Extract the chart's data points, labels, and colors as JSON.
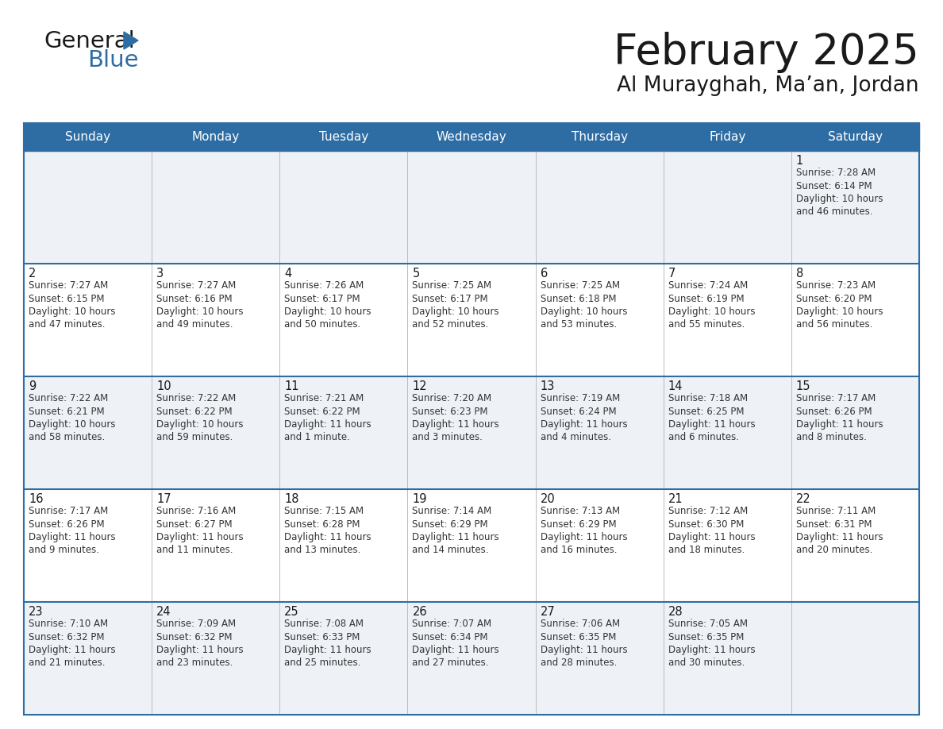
{
  "title": "February 2025",
  "subtitle": "Al Murayghah, Ma’an, Jordan",
  "header_color": "#2e6da4",
  "header_text_color": "#ffffff",
  "cell_bg_even": "#eef2f7",
  "cell_bg_odd": "#ffffff",
  "text_color": "#333333",
  "day_number_color": "#1a1a1a",
  "border_color": "#2e6da4",
  "divider_color": "#2e6da4",
  "days_of_week": [
    "Sunday",
    "Monday",
    "Tuesday",
    "Wednesday",
    "Thursday",
    "Friday",
    "Saturday"
  ],
  "weeks": [
    [
      {
        "day": "",
        "info": ""
      },
      {
        "day": "",
        "info": ""
      },
      {
        "day": "",
        "info": ""
      },
      {
        "day": "",
        "info": ""
      },
      {
        "day": "",
        "info": ""
      },
      {
        "day": "",
        "info": ""
      },
      {
        "day": "1",
        "info": "Sunrise: 7:28 AM\nSunset: 6:14 PM\nDaylight: 10 hours\nand 46 minutes."
      }
    ],
    [
      {
        "day": "2",
        "info": "Sunrise: 7:27 AM\nSunset: 6:15 PM\nDaylight: 10 hours\nand 47 minutes."
      },
      {
        "day": "3",
        "info": "Sunrise: 7:27 AM\nSunset: 6:16 PM\nDaylight: 10 hours\nand 49 minutes."
      },
      {
        "day": "4",
        "info": "Sunrise: 7:26 AM\nSunset: 6:17 PM\nDaylight: 10 hours\nand 50 minutes."
      },
      {
        "day": "5",
        "info": "Sunrise: 7:25 AM\nSunset: 6:17 PM\nDaylight: 10 hours\nand 52 minutes."
      },
      {
        "day": "6",
        "info": "Sunrise: 7:25 AM\nSunset: 6:18 PM\nDaylight: 10 hours\nand 53 minutes."
      },
      {
        "day": "7",
        "info": "Sunrise: 7:24 AM\nSunset: 6:19 PM\nDaylight: 10 hours\nand 55 minutes."
      },
      {
        "day": "8",
        "info": "Sunrise: 7:23 AM\nSunset: 6:20 PM\nDaylight: 10 hours\nand 56 minutes."
      }
    ],
    [
      {
        "day": "9",
        "info": "Sunrise: 7:22 AM\nSunset: 6:21 PM\nDaylight: 10 hours\nand 58 minutes."
      },
      {
        "day": "10",
        "info": "Sunrise: 7:22 AM\nSunset: 6:22 PM\nDaylight: 10 hours\nand 59 minutes."
      },
      {
        "day": "11",
        "info": "Sunrise: 7:21 AM\nSunset: 6:22 PM\nDaylight: 11 hours\nand 1 minute."
      },
      {
        "day": "12",
        "info": "Sunrise: 7:20 AM\nSunset: 6:23 PM\nDaylight: 11 hours\nand 3 minutes."
      },
      {
        "day": "13",
        "info": "Sunrise: 7:19 AM\nSunset: 6:24 PM\nDaylight: 11 hours\nand 4 minutes."
      },
      {
        "day": "14",
        "info": "Sunrise: 7:18 AM\nSunset: 6:25 PM\nDaylight: 11 hours\nand 6 minutes."
      },
      {
        "day": "15",
        "info": "Sunrise: 7:17 AM\nSunset: 6:26 PM\nDaylight: 11 hours\nand 8 minutes."
      }
    ],
    [
      {
        "day": "16",
        "info": "Sunrise: 7:17 AM\nSunset: 6:26 PM\nDaylight: 11 hours\nand 9 minutes."
      },
      {
        "day": "17",
        "info": "Sunrise: 7:16 AM\nSunset: 6:27 PM\nDaylight: 11 hours\nand 11 minutes."
      },
      {
        "day": "18",
        "info": "Sunrise: 7:15 AM\nSunset: 6:28 PM\nDaylight: 11 hours\nand 13 minutes."
      },
      {
        "day": "19",
        "info": "Sunrise: 7:14 AM\nSunset: 6:29 PM\nDaylight: 11 hours\nand 14 minutes."
      },
      {
        "day": "20",
        "info": "Sunrise: 7:13 AM\nSunset: 6:29 PM\nDaylight: 11 hours\nand 16 minutes."
      },
      {
        "day": "21",
        "info": "Sunrise: 7:12 AM\nSunset: 6:30 PM\nDaylight: 11 hours\nand 18 minutes."
      },
      {
        "day": "22",
        "info": "Sunrise: 7:11 AM\nSunset: 6:31 PM\nDaylight: 11 hours\nand 20 minutes."
      }
    ],
    [
      {
        "day": "23",
        "info": "Sunrise: 7:10 AM\nSunset: 6:32 PM\nDaylight: 11 hours\nand 21 minutes."
      },
      {
        "day": "24",
        "info": "Sunrise: 7:09 AM\nSunset: 6:32 PM\nDaylight: 11 hours\nand 23 minutes."
      },
      {
        "day": "25",
        "info": "Sunrise: 7:08 AM\nSunset: 6:33 PM\nDaylight: 11 hours\nand 25 minutes."
      },
      {
        "day": "26",
        "info": "Sunrise: 7:07 AM\nSunset: 6:34 PM\nDaylight: 11 hours\nand 27 minutes."
      },
      {
        "day": "27",
        "info": "Sunrise: 7:06 AM\nSunset: 6:35 PM\nDaylight: 11 hours\nand 28 minutes."
      },
      {
        "day": "28",
        "info": "Sunrise: 7:05 AM\nSunset: 6:35 PM\nDaylight: 11 hours\nand 30 minutes."
      },
      {
        "day": "",
        "info": ""
      }
    ]
  ]
}
